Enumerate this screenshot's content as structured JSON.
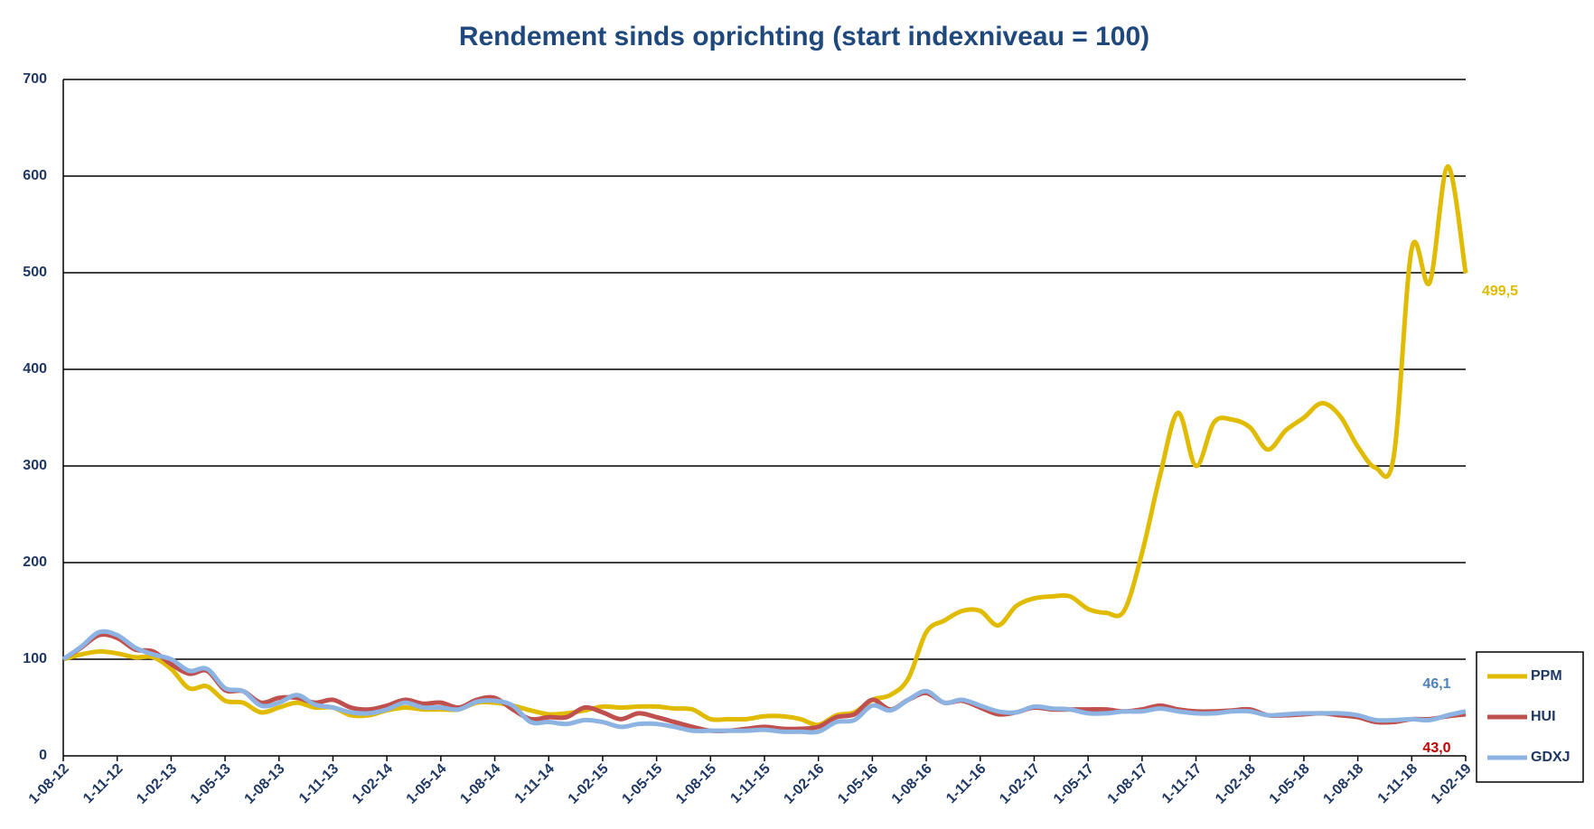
{
  "chart_data": {
    "type": "line",
    "title": "Rendement sinds oprichting (start indexniveau = 100)",
    "categories": [
      "1-08-12",
      null,
      null,
      "1-11-12",
      null,
      null,
      "1-02-13",
      null,
      null,
      "1-05-13",
      null,
      null,
      "1-08-13",
      null,
      null,
      "1-11-13",
      null,
      null,
      "1-02-14",
      null,
      null,
      "1-05-14",
      null,
      null,
      "1-08-14",
      null,
      null,
      "1-11-14",
      null,
      null,
      "1-02-15",
      null,
      null,
      "1-05-15",
      null,
      null,
      "1-08-15",
      null,
      null,
      "1-11-15",
      null,
      null,
      "1-02-16",
      null,
      null,
      "1-05-16",
      null,
      null,
      "1-08-16",
      null,
      null,
      "1-11-16",
      null,
      null,
      "1-02-17",
      null,
      null,
      "1-05-17",
      null,
      null,
      "1-08-17",
      null,
      null,
      "1-11-17",
      null,
      null,
      "1-02-18",
      null,
      null,
      "1-05-18",
      null,
      null,
      "1-08-18",
      null,
      null,
      "1-11-18",
      null,
      null,
      "1-02-19"
    ],
    "series": [
      {
        "name": "PPM",
        "color": "#e1bb00",
        "label_color": "#e1bb00",
        "values": [
          100,
          105,
          108,
          106,
          102,
          102,
          90,
          70,
          72,
          57,
          55,
          45,
          50,
          55,
          50,
          50,
          42,
          42,
          47,
          50,
          48,
          48,
          48,
          55,
          55,
          52,
          47,
          43,
          44,
          47,
          51,
          50,
          51,
          51,
          49,
          48,
          38,
          38,
          38,
          41,
          41,
          38,
          32,
          42,
          45,
          58,
          63,
          80,
          128,
          140,
          150,
          150,
          135,
          155,
          163,
          165,
          165,
          152,
          148,
          150,
          210,
          290,
          355,
          300,
          345,
          348,
          340,
          317,
          337,
          350,
          365,
          352,
          320,
          298,
          310,
          525,
          490,
          610,
          499.5
        ],
        "value_labels": [
          null,
          null,
          null,
          null,
          null,
          null,
          null,
          null,
          null,
          null,
          null,
          null,
          null,
          null,
          null,
          null,
          null,
          null,
          null,
          null,
          null,
          null,
          null,
          null,
          null,
          null,
          null,
          null,
          null,
          null,
          null,
          null,
          null,
          null,
          null,
          null,
          null,
          null,
          null,
          null,
          null,
          null,
          null,
          null,
          null,
          null,
          null,
          null,
          null,
          null,
          null,
          null,
          null,
          null,
          null,
          null,
          null,
          null,
          null,
          null,
          null,
          null,
          null,
          null,
          null,
          null,
          null,
          null,
          null,
          null,
          null,
          null,
          null,
          null,
          null,
          null,
          null,
          null,
          "499,5"
        ]
      },
      {
        "name": "HUI",
        "color": "#c0504d",
        "label_color": "#c00000",
        "values": [
          100,
          112,
          125,
          122,
          110,
          108,
          95,
          85,
          88,
          68,
          67,
          55,
          60,
          60,
          55,
          58,
          50,
          48,
          52,
          58,
          54,
          55,
          50,
          58,
          60,
          48,
          38,
          40,
          40,
          50,
          45,
          38,
          44,
          40,
          35,
          30,
          26,
          26,
          28,
          30,
          28,
          28,
          30,
          40,
          43,
          58,
          48,
          58,
          65,
          55,
          57,
          50,
          43,
          45,
          50,
          48,
          48,
          48,
          48,
          46,
          48,
          52,
          48,
          46,
          46,
          47,
          48,
          42,
          42,
          43,
          44,
          42,
          40,
          35,
          35,
          38,
          38,
          41,
          43
        ],
        "value_labels": [
          null,
          null,
          null,
          null,
          null,
          null,
          null,
          null,
          null,
          null,
          null,
          null,
          null,
          null,
          null,
          null,
          null,
          null,
          null,
          null,
          null,
          null,
          null,
          null,
          null,
          null,
          null,
          null,
          null,
          null,
          null,
          null,
          null,
          null,
          null,
          null,
          null,
          null,
          null,
          null,
          null,
          null,
          null,
          null,
          null,
          null,
          null,
          null,
          null,
          null,
          null,
          null,
          null,
          null,
          null,
          null,
          null,
          null,
          null,
          null,
          null,
          null,
          null,
          null,
          null,
          null,
          null,
          null,
          null,
          null,
          null,
          null,
          null,
          null,
          null,
          null,
          null,
          null,
          "43,0"
        ]
      },
      {
        "name": "GDXJ",
        "color": "#8db3e2",
        "label_color": "#4f81bd",
        "values": [
          100,
          113,
          128,
          125,
          112,
          105,
          100,
          88,
          90,
          70,
          67,
          52,
          55,
          63,
          53,
          50,
          45,
          44,
          48,
          55,
          50,
          50,
          48,
          56,
          57,
          52,
          35,
          35,
          33,
          37,
          35,
          30,
          33,
          33,
          30,
          26,
          26,
          26,
          26,
          27,
          25,
          25,
          25,
          35,
          37,
          52,
          47,
          58,
          67,
          55,
          58,
          52,
          46,
          45,
          51,
          49,
          48,
          44,
          44,
          46,
          46,
          49,
          46,
          44,
          44,
          46,
          46,
          42,
          43,
          44,
          44,
          44,
          42,
          37,
          37,
          38,
          37,
          42,
          46.1
        ],
        "value_labels": [
          null,
          null,
          null,
          null,
          null,
          null,
          null,
          null,
          null,
          null,
          null,
          null,
          null,
          null,
          null,
          null,
          null,
          null,
          null,
          null,
          null,
          null,
          null,
          null,
          null,
          null,
          null,
          null,
          null,
          null,
          null,
          null,
          null,
          null,
          null,
          null,
          null,
          null,
          null,
          null,
          null,
          null,
          null,
          null,
          null,
          null,
          null,
          null,
          null,
          null,
          null,
          null,
          null,
          null,
          null,
          null,
          null,
          null,
          null,
          null,
          null,
          null,
          null,
          null,
          null,
          null,
          null,
          null,
          null,
          null,
          null,
          null,
          null,
          null,
          null,
          null,
          null,
          null,
          "46,1"
        ]
      }
    ],
    "ylim": [
      0,
      700
    ],
    "yticks": [
      0,
      100,
      200,
      300,
      400,
      500,
      600,
      700
    ],
    "grid": true,
    "legend": "lower right"
  }
}
